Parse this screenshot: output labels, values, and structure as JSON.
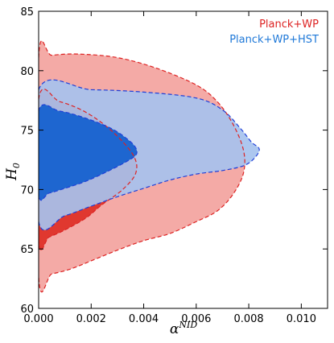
{
  "chart_data": {
    "type": "contour",
    "xlabel_base": "α",
    "xlabel_sup": "NID",
    "ylabel_base": "H",
    "ylabel_sub": "0",
    "xlim": [
      0,
      0.011
    ],
    "ylim": [
      60,
      85
    ],
    "xticks": [
      "0.000",
      "0.002",
      "0.004",
      "0.006",
      "0.008",
      "0.010"
    ],
    "xtick_values": [
      0,
      0.002,
      0.004,
      0.006,
      0.008,
      0.01
    ],
    "yticks": [
      "60",
      "65",
      "70",
      "75",
      "80",
      "85"
    ],
    "ytick_values": [
      60,
      65,
      70,
      75,
      80,
      85
    ],
    "grid": false,
    "legend_position": "top-right",
    "series": [
      {
        "name": "Planck+WP",
        "color": "#dd2222",
        "fill_outer": "#f4aaa6",
        "fill_inner": "#e0382f",
        "contour_95": [
          [
            0.0,
            81.1
          ],
          [
            0.0005,
            81.3
          ],
          [
            0.0015,
            81.4
          ],
          [
            0.003,
            81.1
          ],
          [
            0.0045,
            80.2
          ],
          [
            0.006,
            78.8
          ],
          [
            0.0068,
            77.4
          ],
          [
            0.0074,
            75.5
          ],
          [
            0.0078,
            73.3
          ],
          [
            0.0078,
            71.4
          ],
          [
            0.0074,
            69.6
          ],
          [
            0.0068,
            68.2
          ],
          [
            0.006,
            67.3
          ],
          [
            0.005,
            66.3
          ],
          [
            0.004,
            65.7
          ],
          [
            0.003,
            64.9
          ],
          [
            0.002,
            64.0
          ],
          [
            0.0012,
            63.3
          ],
          [
            0.0005,
            62.9
          ],
          [
            0.0,
            62.7
          ]
        ],
        "contour_68": [
          [
            0.0,
            77.6
          ],
          [
            0.0008,
            77.4
          ],
          [
            0.0018,
            76.5
          ],
          [
            0.0028,
            74.9
          ],
          [
            0.0036,
            72.9
          ],
          [
            0.0037,
            71.4
          ],
          [
            0.0032,
            70.0
          ],
          [
            0.0024,
            68.7
          ],
          [
            0.0018,
            67.6
          ],
          [
            0.001,
            66.6
          ],
          [
            0.0004,
            66.0
          ],
          [
            0.0,
            65.7
          ]
        ]
      },
      {
        "name": "Planck+WP+HST",
        "color": "#1f3fd8",
        "fill_outer": "#a6c2ee",
        "fill_inner": "#1e66d0",
        "contour_95": [
          [
            0.0,
            78.4
          ],
          [
            0.002,
            78.4
          ],
          [
            0.004,
            78.2
          ],
          [
            0.006,
            77.7
          ],
          [
            0.007,
            76.7
          ],
          [
            0.0077,
            75.1
          ],
          [
            0.0081,
            74.0
          ],
          [
            0.0084,
            73.4
          ],
          [
            0.0082,
            72.6
          ],
          [
            0.0078,
            72.0
          ],
          [
            0.007,
            71.6
          ],
          [
            0.006,
            71.3
          ],
          [
            0.005,
            70.8
          ],
          [
            0.004,
            70.1
          ],
          [
            0.003,
            69.4
          ],
          [
            0.002,
            68.6
          ],
          [
            0.001,
            67.8
          ],
          [
            0.0,
            67.3
          ]
        ],
        "contour_68": [
          [
            0.0,
            76.6
          ],
          [
            0.0008,
            76.6
          ],
          [
            0.0018,
            76.0
          ],
          [
            0.0028,
            75.1
          ],
          [
            0.0034,
            74.2
          ],
          [
            0.0037,
            73.5
          ],
          [
            0.0037,
            72.9
          ],
          [
            0.0033,
            72.3
          ],
          [
            0.0026,
            71.5
          ],
          [
            0.0018,
            70.7
          ],
          [
            0.001,
            70.1
          ],
          [
            0.0004,
            69.7
          ],
          [
            0.0,
            69.6
          ]
        ]
      }
    ]
  }
}
